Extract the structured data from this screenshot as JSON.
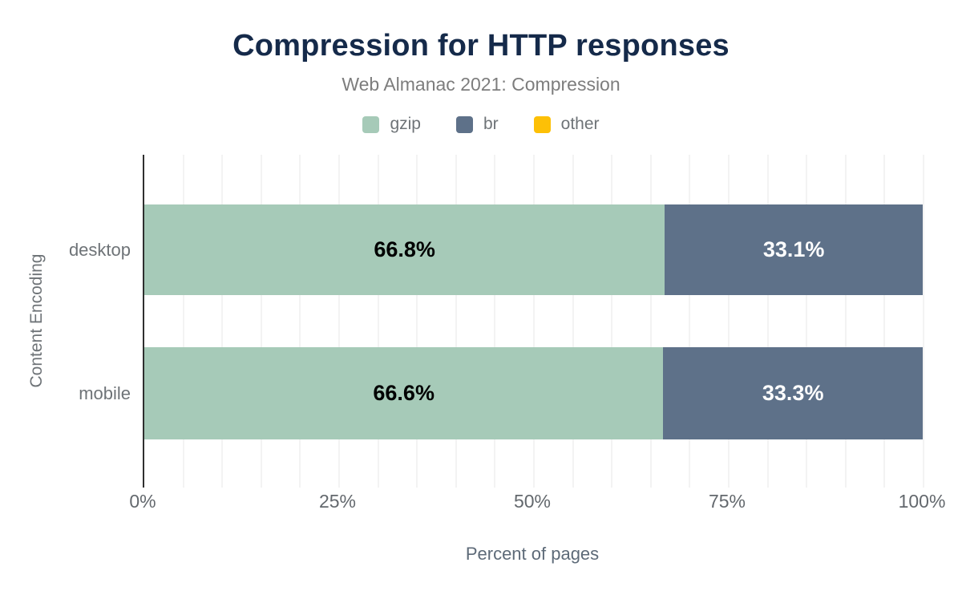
{
  "title": "Compression for HTTP responses",
  "subtitle": "Web Almanac 2021: Compression",
  "chart_data": {
    "type": "bar",
    "orientation": "horizontal",
    "stacked": true,
    "title": "Compression for HTTP responses",
    "subtitle": "Web Almanac 2021: Compression",
    "categories": [
      "desktop",
      "mobile"
    ],
    "series": [
      {
        "name": "gzip",
        "color": "#a6cab8",
        "label_color": "#000000",
        "values": [
          66.8,
          66.6
        ]
      },
      {
        "name": "br",
        "color": "#5e7189",
        "label_color": "#ffffff",
        "values": [
          33.1,
          33.3
        ]
      },
      {
        "name": "other",
        "color": "#fdc006",
        "label_color": "#000000",
        "values": [
          null,
          null
        ]
      }
    ],
    "xlabel": "Percent of pages",
    "ylabel": "Content Encoding",
    "x_ticks": [
      "0%",
      "25%",
      "50%",
      "75%",
      "100%"
    ],
    "xlim": [
      0,
      100
    ],
    "grid": true,
    "gridline_step_pct": 5,
    "legend_position": "top"
  },
  "colors": {
    "title": "#152a4a",
    "subtitle": "#7d7d7d",
    "axis_line": "#2f2f2f",
    "gridline": "#f3f3f3",
    "tick_text": "#63686d",
    "label_text": "#6e7377"
  }
}
